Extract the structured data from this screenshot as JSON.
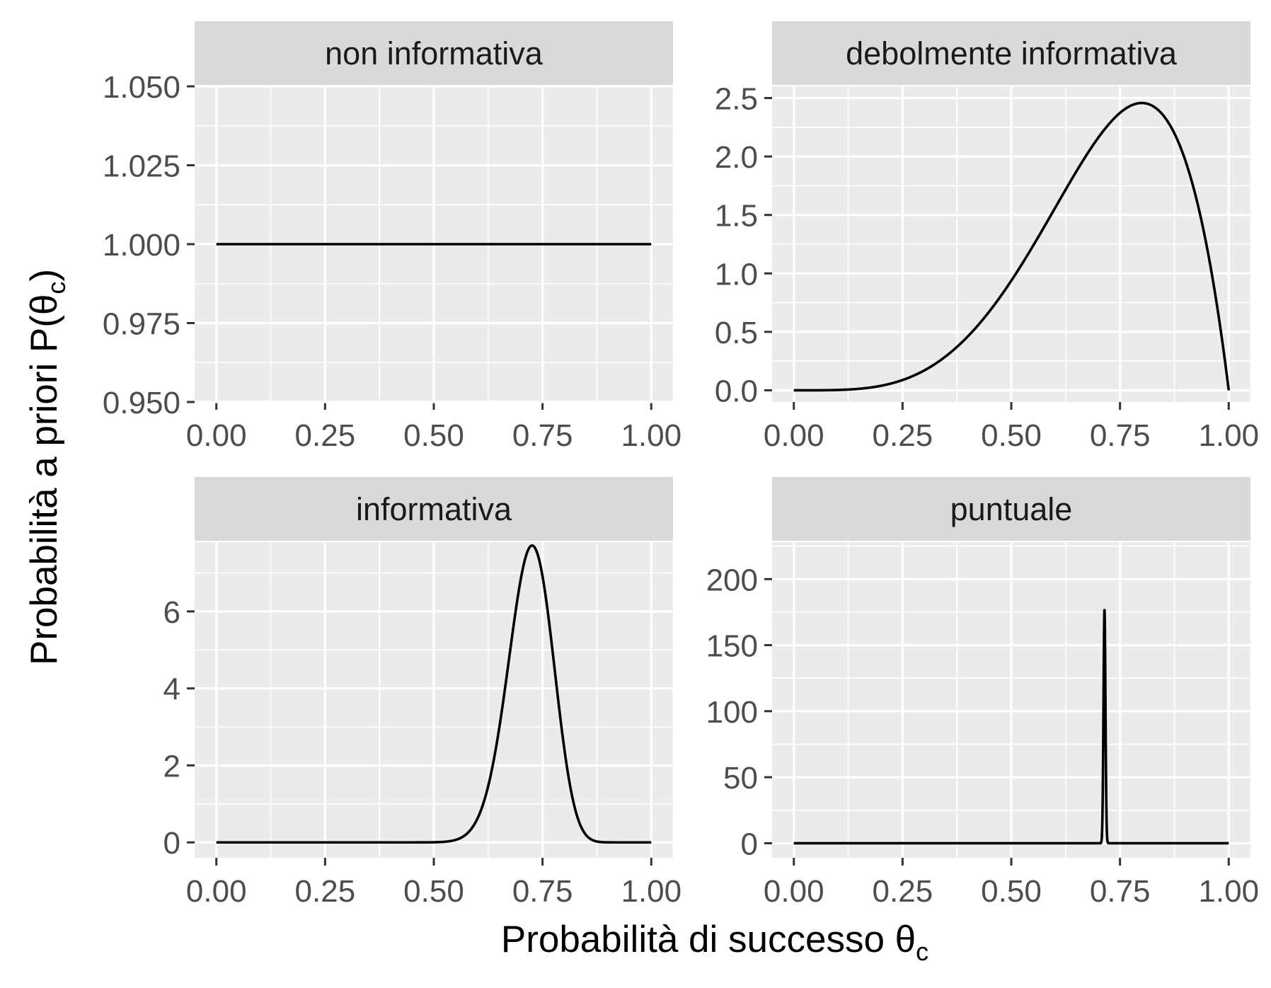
{
  "chart_data": {
    "type": "line",
    "layout": "facet-grid 2x2",
    "xlabel": "Probabilità di successo θc",
    "ylabel": "Probabilità a priori P(θc)",
    "xlabel_parts": {
      "main": "Probabilità di successo θ",
      "sub": "c"
    },
    "ylabel_parts": {
      "main": "Probabilità a priori P(θ",
      "sub": "c",
      "close": ")"
    },
    "line_color": "#000000",
    "panel_background": "#ebebeb",
    "strip_background": "#d9d9d9",
    "grid": true,
    "panels": [
      {
        "title": "non informativa",
        "xlim": [
          -0.05,
          1.05
        ],
        "ylim": [
          0.95,
          1.05
        ],
        "x_ticks": [
          0,
          0.25,
          0.5,
          0.75,
          1
        ],
        "x_tick_labels": [
          "0.00",
          "0.25",
          "0.50",
          "0.75",
          "1.00"
        ],
        "y_ticks": [
          0.95,
          0.975,
          1,
          1.025,
          1.05
        ],
        "y_tick_labels": [
          "0.950",
          "0.975",
          "1.000",
          "1.025",
          "1.050"
        ],
        "curve": {
          "family": "beta",
          "alpha": 1,
          "beta": 1
        }
      },
      {
        "title": "debolmente informativa",
        "xlim": [
          -0.05,
          1.05
        ],
        "ylim": [
          -0.1,
          2.6
        ],
        "x_ticks": [
          0,
          0.25,
          0.5,
          0.75,
          1
        ],
        "x_tick_labels": [
          "0.00",
          "0.25",
          "0.50",
          "0.75",
          "1.00"
        ],
        "y_ticks": [
          0,
          0.5,
          1,
          1.5,
          2,
          2.5
        ],
        "y_tick_labels": [
          "0.0",
          "0.5",
          "1.0",
          "1.5",
          "2.0",
          "2.5"
        ],
        "curve": {
          "family": "beta",
          "alpha": 5,
          "beta": 2
        }
      },
      {
        "title": "informativa",
        "xlim": [
          -0.05,
          1.05
        ],
        "ylim": [
          -0.4,
          7.8
        ],
        "x_ticks": [
          0,
          0.25,
          0.5,
          0.75,
          1
        ],
        "x_tick_labels": [
          "0.00",
          "0.25",
          "0.50",
          "0.75",
          "1.00"
        ],
        "y_ticks": [
          0,
          2,
          4,
          6
        ],
        "y_tick_labels": [
          "0",
          "2",
          "4",
          "6"
        ],
        "curve": {
          "family": "beta",
          "alpha": 54,
          "beta": 21
        }
      },
      {
        "title": "puntuale",
        "xlim": [
          -0.05,
          1.05
        ],
        "ylim": [
          -11,
          228
        ],
        "x_ticks": [
          0,
          0.25,
          0.5,
          0.75,
          1
        ],
        "x_tick_labels": [
          "0.00",
          "0.25",
          "0.50",
          "0.75",
          "1.00"
        ],
        "y_ticks": [
          0,
          50,
          100,
          150,
          200
        ],
        "y_tick_labels": [
          "0",
          "50",
          "100",
          "150",
          "200"
        ],
        "curve": {
          "family": "beta",
          "alpha": 28560,
          "beta": 11423
        }
      }
    ]
  }
}
